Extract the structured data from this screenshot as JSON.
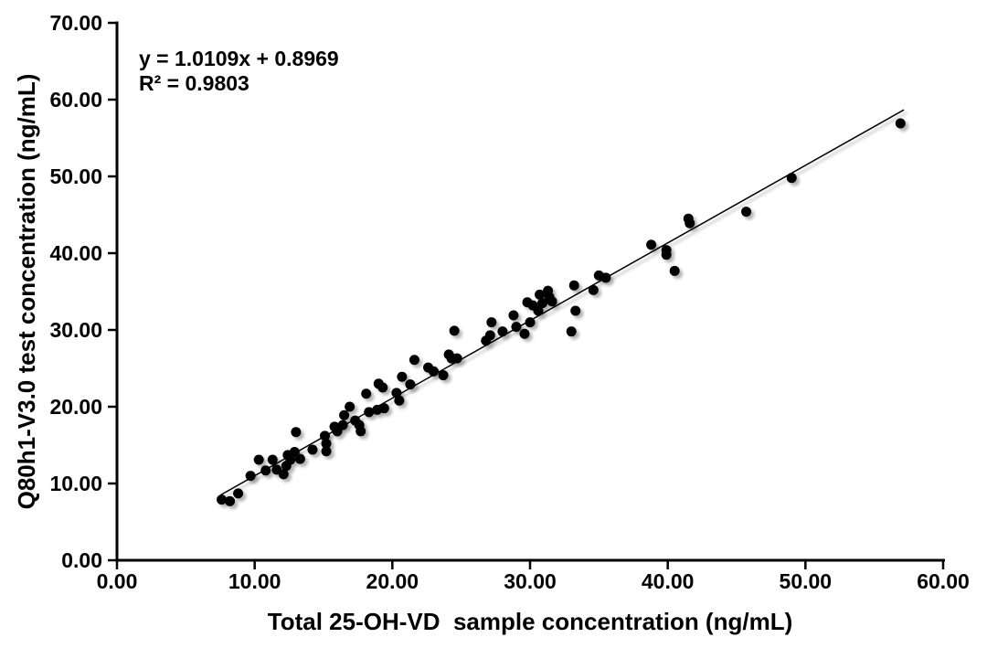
{
  "figure": {
    "background": "#ffffff",
    "text_color": "#000000"
  },
  "chart_data": {
    "type": "scatter",
    "title": "",
    "xlabel": "Total 25-OH-VD  sample concentration (ng/mL)",
    "ylabel": "Q80h1-V3.0 test concentration (ng/mL)",
    "xlim": [
      0,
      60
    ],
    "ylim": [
      0,
      70
    ],
    "xticks": [
      0,
      10,
      20,
      30,
      40,
      50,
      60
    ],
    "yticks": [
      0,
      10,
      20,
      30,
      40,
      50,
      60,
      70
    ],
    "tick_decimals": 2,
    "grid": false,
    "legend": null,
    "marker": {
      "shape": "circle",
      "color": "#000000",
      "radius": 5.5
    },
    "annotation": {
      "equation": "y = 1.0109x + 0.8969",
      "r_squared": "R² = 0.9803"
    },
    "regression_line": {
      "slope": 1.0109,
      "intercept": 0.8969,
      "x_start": 7.55,
      "x_end": 57.15,
      "color": "#000000"
    },
    "points": [
      [
        7.6,
        7.9
      ],
      [
        8.2,
        7.7
      ],
      [
        8.8,
        8.7
      ],
      [
        9.7,
        11.0
      ],
      [
        10.3,
        13.1
      ],
      [
        10.8,
        11.7
      ],
      [
        11.3,
        13.1
      ],
      [
        11.6,
        11.8
      ],
      [
        12.1,
        11.2
      ],
      [
        12.3,
        12.3
      ],
      [
        12.4,
        13.7
      ],
      [
        12.6,
        13.1
      ],
      [
        12.9,
        14.1
      ],
      [
        13.0,
        16.7
      ],
      [
        13.3,
        13.2
      ],
      [
        14.2,
        14.4
      ],
      [
        15.1,
        16.2
      ],
      [
        15.2,
        15.2
      ],
      [
        15.2,
        14.2
      ],
      [
        15.8,
        17.4
      ],
      [
        16.0,
        16.8
      ],
      [
        16.4,
        17.6
      ],
      [
        16.5,
        18.9
      ],
      [
        16.9,
        20.0
      ],
      [
        17.3,
        18.2
      ],
      [
        17.6,
        17.6
      ],
      [
        17.7,
        16.8
      ],
      [
        18.1,
        21.7
      ],
      [
        18.3,
        19.3
      ],
      [
        18.9,
        19.6
      ],
      [
        19.4,
        19.8
      ],
      [
        19.0,
        23.0
      ],
      [
        19.3,
        22.5
      ],
      [
        20.3,
        21.8
      ],
      [
        20.5,
        20.8
      ],
      [
        20.7,
        23.9
      ],
      [
        21.3,
        22.9
      ],
      [
        21.6,
        26.1
      ],
      [
        22.6,
        25.1
      ],
      [
        23.0,
        24.6
      ],
      [
        23.7,
        24.1
      ],
      [
        24.1,
        26.8
      ],
      [
        24.3,
        26.3
      ],
      [
        24.5,
        29.9
      ],
      [
        24.7,
        26.3
      ],
      [
        26.8,
        28.6
      ],
      [
        27.1,
        29.3
      ],
      [
        27.2,
        31.0
      ],
      [
        28.0,
        29.8
      ],
      [
        28.8,
        31.9
      ],
      [
        29.0,
        30.4
      ],
      [
        29.6,
        29.5
      ],
      [
        29.8,
        33.6
      ],
      [
        30.2,
        33.2
      ],
      [
        30.0,
        31.0
      ],
      [
        30.6,
        32.5
      ],
      [
        30.7,
        34.6
      ],
      [
        30.9,
        33.5
      ],
      [
        31.3,
        35.1
      ],
      [
        31.4,
        34.3
      ],
      [
        31.6,
        33.7
      ],
      [
        33.0,
        29.8
      ],
      [
        33.2,
        35.8
      ],
      [
        33.3,
        32.5
      ],
      [
        34.6,
        35.2
      ],
      [
        35.0,
        37.1
      ],
      [
        35.5,
        36.8
      ],
      [
        38.8,
        41.1
      ],
      [
        39.9,
        40.4
      ],
      [
        39.9,
        39.8
      ],
      [
        40.5,
        37.7
      ],
      [
        41.5,
        44.5
      ],
      [
        41.6,
        43.9
      ],
      [
        45.7,
        45.4
      ],
      [
        49.0,
        49.8
      ],
      [
        56.9,
        56.9
      ]
    ]
  }
}
